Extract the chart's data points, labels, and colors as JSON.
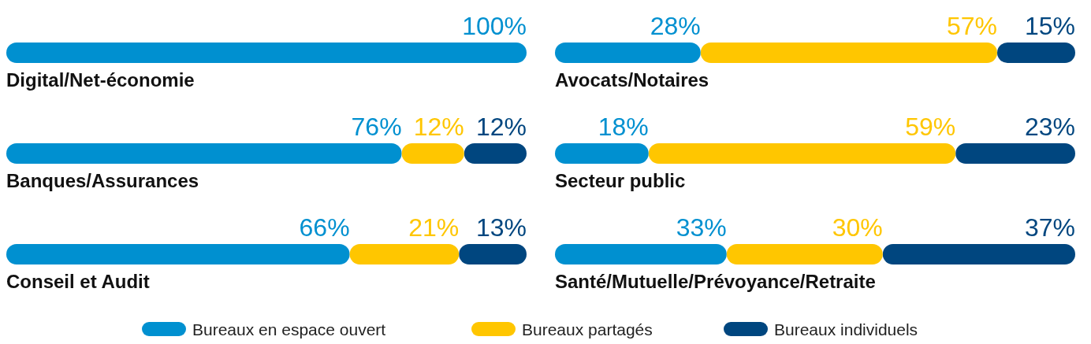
{
  "chart_data": [
    {
      "type": "bar",
      "orientation": "horizontal",
      "stacked": true,
      "categories": [
        "Digital/Net-économie"
      ],
      "series": [
        {
          "color": "#0090d0",
          "values": [
            100
          ],
          "value_labels": [
            "100%"
          ]
        }
      ]
    },
    {
      "type": "bar",
      "orientation": "horizontal",
      "stacked": true,
      "categories": [
        "Avocats/Notaires"
      ],
      "series": [
        {
          "color": "#0090d0",
          "values": [
            28
          ],
          "value_labels": [
            "28%"
          ]
        },
        {
          "color": "#ffc600",
          "values": [
            57
          ],
          "value_labels": [
            "57%"
          ]
        },
        {
          "color": "#00467f",
          "values": [
            15
          ],
          "value_labels": [
            "15%"
          ]
        }
      ]
    },
    {
      "type": "bar",
      "orientation": "horizontal",
      "stacked": true,
      "categories": [
        "Banques/Assurances"
      ],
      "series": [
        {
          "color": "#0090d0",
          "values": [
            76
          ],
          "value_labels": [
            "76%"
          ]
        },
        {
          "color": "#ffc600",
          "values": [
            12
          ],
          "value_labels": [
            "12%"
          ]
        },
        {
          "color": "#00467f",
          "values": [
            12
          ],
          "value_labels": [
            "12%"
          ]
        }
      ]
    },
    {
      "type": "bar",
      "orientation": "horizontal",
      "stacked": true,
      "categories": [
        "Secteur public"
      ],
      "series": [
        {
          "color": "#0090d0",
          "values": [
            18
          ],
          "value_labels": [
            "18%"
          ]
        },
        {
          "color": "#ffc600",
          "values": [
            59
          ],
          "value_labels": [
            "59%"
          ]
        },
        {
          "color": "#00467f",
          "values": [
            23
          ],
          "value_labels": [
            "23%"
          ]
        }
      ]
    },
    {
      "type": "bar",
      "orientation": "horizontal",
      "stacked": true,
      "categories": [
        "Conseil et Audit"
      ],
      "series": [
        {
          "color": "#0090d0",
          "values": [
            66
          ],
          "value_labels": [
            "66%"
          ]
        },
        {
          "color": "#ffc600",
          "values": [
            21
          ],
          "value_labels": [
            "21%"
          ]
        },
        {
          "color": "#00467f",
          "values": [
            13
          ],
          "value_labels": [
            "13%"
          ]
        }
      ]
    },
    {
      "type": "bar",
      "orientation": "horizontal",
      "stacked": true,
      "legend": "bottom",
      "categories": [
        "Santé/Mutuelle/Prévoyance/Retraite"
      ],
      "series": [
        {
          "name": "Bureaux en espace ouvert",
          "color": "#0090d0",
          "values": [
            33
          ],
          "value_labels": [
            "33%"
          ]
        },
        {
          "name": "Bureaux partagés",
          "color": "#ffc600",
          "values": [
            30
          ],
          "value_labels": [
            "30%"
          ]
        },
        {
          "name": "Bureaux individuels",
          "color": "#00467f",
          "values": [
            37
          ],
          "value_labels": [
            "37%"
          ]
        }
      ]
    }
  ]
}
